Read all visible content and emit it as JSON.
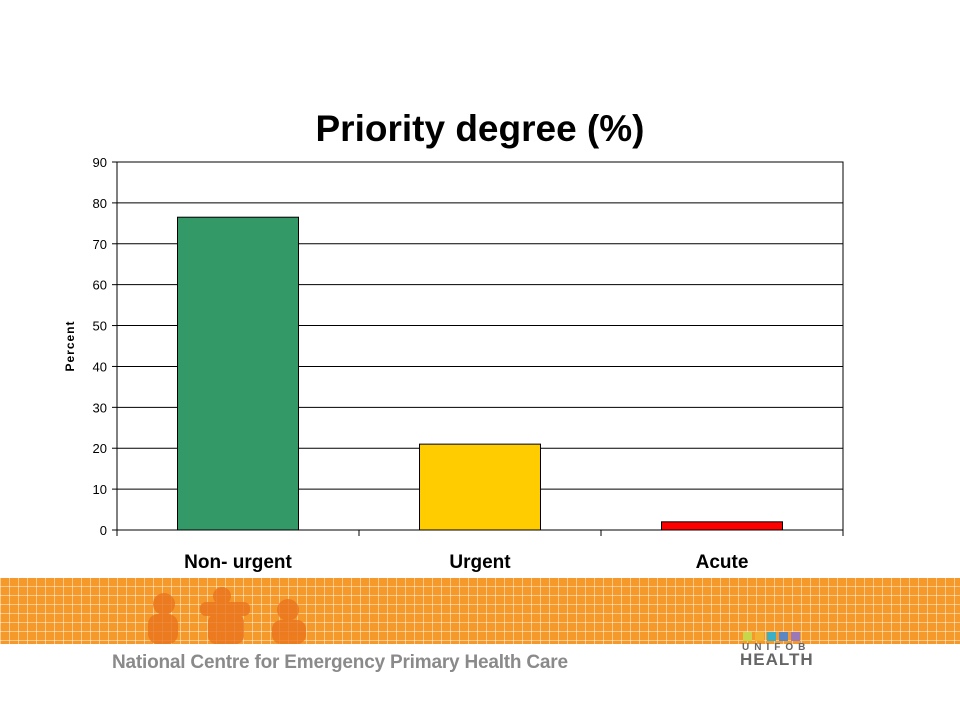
{
  "chart_data": {
    "type": "bar",
    "title": "Priority degree (%)",
    "ylabel": "Percent",
    "xlabel": "",
    "categories": [
      "Non- urgent",
      "Urgent",
      "Acute"
    ],
    "values": [
      76.5,
      21,
      2
    ],
    "bar_colors": [
      "#339966",
      "#ffcc00",
      "#ff0000"
    ],
    "ylim": [
      0,
      90
    ],
    "yticks": [
      0,
      10,
      20,
      30,
      40,
      50,
      60,
      70,
      80,
      90
    ],
    "grid": true,
    "legend": "none"
  },
  "footer": {
    "text": "National Centre for Emergency Primary Health Care",
    "band_color": "#f59a2a"
  },
  "logo": {
    "top": "UNIFOB",
    "bottom": "HEALTH",
    "square_colors": [
      "#c8d64b",
      "#f2b233",
      "#3ab0c7",
      "#5b86c4",
      "#9b79b8"
    ]
  }
}
